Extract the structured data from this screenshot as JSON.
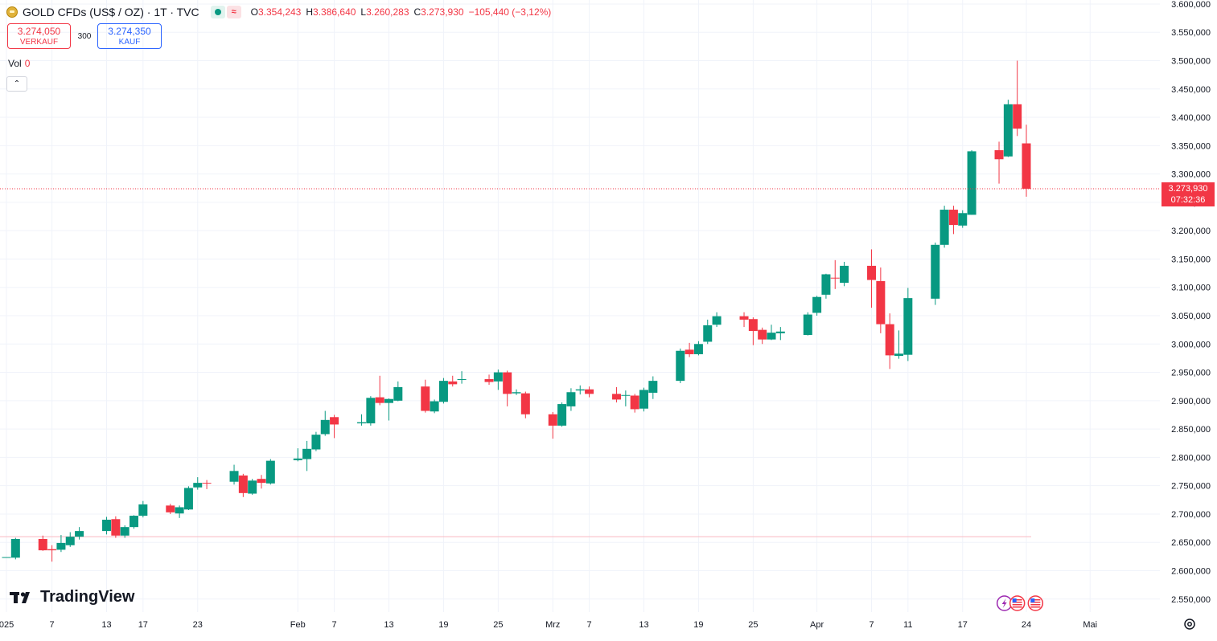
{
  "header": {
    "title": "GOLD CFDs (US$ / OZ) · 1T · TVC",
    "open_label": "O",
    "open": "3.354,243",
    "high_label": "H",
    "high": "3.386,640",
    "low_label": "L",
    "low": "3.260,283",
    "close_label": "C",
    "close": "3.273,930",
    "change": "−105,440 (−3,12%)",
    "symbol_icon": "gold-bar-icon",
    "status_icons": [
      "market-open-icon",
      "delay-wave-icon"
    ],
    "wave_glyph": "≈"
  },
  "trade": {
    "sell_price": "3.274,050",
    "sell_label": "VERKAUF",
    "spread": "300",
    "buy_price": "3.274,350",
    "buy_label": "KAUF"
  },
  "volume": {
    "label": "Vol",
    "value": "0"
  },
  "collapse_glyph": "⌃",
  "price_tag": {
    "price": "3.273,930",
    "countdown": "07:32:36"
  },
  "brand": "TradingView",
  "colors": {
    "up": "#089981",
    "down": "#f23645",
    "grid": "#f0f3fa",
    "axis_text": "#131722"
  },
  "chart_data": {
    "type": "candlestick",
    "y_ticks": [
      "3.600,000",
      "3.550,000",
      "3.500,000",
      "3.450,000",
      "3.400,000",
      "3.350,000",
      "3.300,000",
      "3.250,000",
      "3.200,000",
      "3.150,000",
      "3.100,000",
      "3.050,000",
      "3.000,000",
      "2.950,000",
      "2.900,000",
      "2.850,000",
      "2.800,000",
      "2.750,000",
      "2.700,000",
      "2.650,000",
      "2.600,000",
      "2.550,000"
    ],
    "y_tick_values": [
      3600,
      3550,
      3500,
      3450,
      3400,
      3350,
      3300,
      3250,
      3200,
      3150,
      3100,
      3050,
      3000,
      2950,
      2900,
      2850,
      2800,
      2750,
      2700,
      2650,
      2600,
      2550
    ],
    "x_ticks": [
      {
        "label": "025",
        "date": "2025-01-02"
      },
      {
        "label": "7",
        "date": "2025-01-07"
      },
      {
        "label": "13",
        "date": "2025-01-13"
      },
      {
        "label": "17",
        "date": "2025-01-17"
      },
      {
        "label": "23",
        "date": "2025-01-23"
      },
      {
        "label": "Feb",
        "date": "2025-02-03"
      },
      {
        "label": "7",
        "date": "2025-02-07"
      },
      {
        "label": "13",
        "date": "2025-02-13"
      },
      {
        "label": "19",
        "date": "2025-02-19"
      },
      {
        "label": "25",
        "date": "2025-02-25"
      },
      {
        "label": "Mrz",
        "date": "2025-03-03"
      },
      {
        "label": "7",
        "date": "2025-03-07"
      },
      {
        "label": "13",
        "date": "2025-03-13"
      },
      {
        "label": "19",
        "date": "2025-03-19"
      },
      {
        "label": "25",
        "date": "2025-03-25"
      },
      {
        "label": "Apr",
        "date": "2025-04-01"
      },
      {
        "label": "7",
        "date": "2025-04-07"
      },
      {
        "label": "11",
        "date": "2025-04-11"
      },
      {
        "label": "17",
        "date": "2025-04-17"
      },
      {
        "label": "24",
        "date": "2025-04-24"
      },
      {
        "label": "Mai",
        "date": "2025-05-01"
      }
    ],
    "ylim": [
      2527,
      3607
    ],
    "last_price": 3273.93,
    "reference_level": 2660,
    "event_markers": [
      {
        "date": "2025-04-23",
        "icons": [
          "lightning-icon",
          "us-flag-icon"
        ]
      },
      {
        "date": "2025-04-25",
        "icons": [
          "us-flag-icon"
        ]
      }
    ],
    "candles": [
      {
        "date": "2025-01-02",
        "o": 2624,
        "h": 2624,
        "l": 2624,
        "c": 2624
      },
      {
        "date": "2025-01-03",
        "o": 2623,
        "h": 2658,
        "l": 2620,
        "c": 2656
      },
      {
        "date": "2025-01-06",
        "o": 2656,
        "h": 2662,
        "l": 2635,
        "c": 2636
      },
      {
        "date": "2025-01-07",
        "o": 2638,
        "h": 2645,
        "l": 2616,
        "c": 2636
      },
      {
        "date": "2025-01-08",
        "o": 2637,
        "h": 2663,
        "l": 2633,
        "c": 2649
      },
      {
        "date": "2025-01-09",
        "o": 2645,
        "h": 2668,
        "l": 2642,
        "c": 2660
      },
      {
        "date": "2025-01-10",
        "o": 2660,
        "h": 2677,
        "l": 2655,
        "c": 2670
      },
      {
        "date": "2025-01-13",
        "o": 2670,
        "h": 2695,
        "l": 2664,
        "c": 2690
      },
      {
        "date": "2025-01-14",
        "o": 2691,
        "h": 2696,
        "l": 2658,
        "c": 2662
      },
      {
        "date": "2025-01-15",
        "o": 2662,
        "h": 2680,
        "l": 2658,
        "c": 2677
      },
      {
        "date": "2025-01-16",
        "o": 2677,
        "h": 2698,
        "l": 2674,
        "c": 2697
      },
      {
        "date": "2025-01-17",
        "o": 2697,
        "h": 2723,
        "l": 2694,
        "c": 2717
      },
      {
        "date": "2025-01-20",
        "o": 2715,
        "h": 2718,
        "l": 2700,
        "c": 2703
      },
      {
        "date": "2025-01-21",
        "o": 2701,
        "h": 2715,
        "l": 2693,
        "c": 2712
      },
      {
        "date": "2025-01-22",
        "o": 2708,
        "h": 2749,
        "l": 2707,
        "c": 2746
      },
      {
        "date": "2025-01-23",
        "o": 2747,
        "h": 2765,
        "l": 2743,
        "c": 2755
      },
      {
        "date": "2025-01-24",
        "o": 2755,
        "h": 2760,
        "l": 2744,
        "c": 2754
      },
      {
        "date": "2025-01-27",
        "o": 2757,
        "h": 2787,
        "l": 2752,
        "c": 2776
      },
      {
        "date": "2025-01-28",
        "o": 2768,
        "h": 2771,
        "l": 2730,
        "c": 2737
      },
      {
        "date": "2025-01-29",
        "o": 2736,
        "h": 2762,
        "l": 2734,
        "c": 2759
      },
      {
        "date": "2025-01-30",
        "o": 2762,
        "h": 2769,
        "l": 2745,
        "c": 2755
      },
      {
        "date": "2025-01-31",
        "o": 2754,
        "h": 2797,
        "l": 2752,
        "c": 2794
      },
      {
        "date": "2025-02-03",
        "o": 2795,
        "h": 2816,
        "l": 2793,
        "c": 2798
      },
      {
        "date": "2025-02-04",
        "o": 2797,
        "h": 2829,
        "l": 2776,
        "c": 2815
      },
      {
        "date": "2025-02-05",
        "o": 2814,
        "h": 2845,
        "l": 2811,
        "c": 2840
      },
      {
        "date": "2025-02-06",
        "o": 2841,
        "h": 2882,
        "l": 2838,
        "c": 2866
      },
      {
        "date": "2025-02-07",
        "o": 2871,
        "h": 2875,
        "l": 2834,
        "c": 2858
      },
      {
        "date": "2025-02-10",
        "o": 2860,
        "h": 2876,
        "l": 2856,
        "c": 2862
      },
      {
        "date": "2025-02-11",
        "o": 2860,
        "h": 2908,
        "l": 2856,
        "c": 2905
      },
      {
        "date": "2025-02-12",
        "o": 2906,
        "h": 2944,
        "l": 2892,
        "c": 2896
      },
      {
        "date": "2025-02-13",
        "o": 2896,
        "h": 2904,
        "l": 2865,
        "c": 2903
      },
      {
        "date": "2025-02-14",
        "o": 2900,
        "h": 2934,
        "l": 2899,
        "c": 2924
      },
      {
        "date": "2025-02-17",
        "o": 2925,
        "h": 2937,
        "l": 2879,
        "c": 2882
      },
      {
        "date": "2025-02-18",
        "o": 2881,
        "h": 2902,
        "l": 2878,
        "c": 2899
      },
      {
        "date": "2025-02-19",
        "o": 2898,
        "h": 2940,
        "l": 2895,
        "c": 2935
      },
      {
        "date": "2025-02-20",
        "o": 2934,
        "h": 2944,
        "l": 2925,
        "c": 2929
      },
      {
        "date": "2025-02-21",
        "o": 2937,
        "h": 2952,
        "l": 2930,
        "c": 2938
      },
      {
        "date": "2025-02-24",
        "o": 2938,
        "h": 2946,
        "l": 2928,
        "c": 2933
      },
      {
        "date": "2025-02-25",
        "o": 2934,
        "h": 2955,
        "l": 2919,
        "c": 2950
      },
      {
        "date": "2025-02-26",
        "o": 2950,
        "h": 2953,
        "l": 2890,
        "c": 2912
      },
      {
        "date": "2025-02-27",
        "o": 2913,
        "h": 2920,
        "l": 2910,
        "c": 2915
      },
      {
        "date": "2025-02-28",
        "o": 2913,
        "h": 2916,
        "l": 2869,
        "c": 2876
      },
      {
        "date": "2025-03-03",
        "o": 2876,
        "h": 2880,
        "l": 2833,
        "c": 2856
      },
      {
        "date": "2025-03-04",
        "o": 2856,
        "h": 2897,
        "l": 2854,
        "c": 2894
      },
      {
        "date": "2025-03-05",
        "o": 2890,
        "h": 2922,
        "l": 2882,
        "c": 2915
      },
      {
        "date": "2025-03-06",
        "o": 2918,
        "h": 2927,
        "l": 2911,
        "c": 2920
      },
      {
        "date": "2025-03-07",
        "o": 2920,
        "h": 2925,
        "l": 2906,
        "c": 2912
      },
      {
        "date": "2025-03-10",
        "o": 2912,
        "h": 2924,
        "l": 2897,
        "c": 2902
      },
      {
        "date": "2025-03-11",
        "o": 2909,
        "h": 2918,
        "l": 2890,
        "c": 2910
      },
      {
        "date": "2025-03-12",
        "o": 2909,
        "h": 2912,
        "l": 2879,
        "c": 2885
      },
      {
        "date": "2025-03-13",
        "o": 2886,
        "h": 2923,
        "l": 2881,
        "c": 2919
      },
      {
        "date": "2025-03-14",
        "o": 2914,
        "h": 2943,
        "l": 2903,
        "c": 2935
      },
      {
        "date": "2025-03-17",
        "o": 2935,
        "h": 2992,
        "l": 2931,
        "c": 2988
      },
      {
        "date": "2025-03-18",
        "o": 2990,
        "h": 3002,
        "l": 2977,
        "c": 2982
      },
      {
        "date": "2025-03-19",
        "o": 2982,
        "h": 3005,
        "l": 2980,
        "c": 3000
      },
      {
        "date": "2025-03-20",
        "o": 3004,
        "h": 3043,
        "l": 3000,
        "c": 3033
      },
      {
        "date": "2025-03-21",
        "o": 3034,
        "h": 3056,
        "l": 3030,
        "c": 3049
      },
      {
        "date": "2025-03-24",
        "o": 3049,
        "h": 3056,
        "l": 3030,
        "c": 3043
      },
      {
        "date": "2025-03-25",
        "o": 3044,
        "h": 3047,
        "l": 2998,
        "c": 3023
      },
      {
        "date": "2025-03-26",
        "o": 3025,
        "h": 3029,
        "l": 3000,
        "c": 3008
      },
      {
        "date": "2025-03-27",
        "o": 3008,
        "h": 3034,
        "l": 3007,
        "c": 3020
      },
      {
        "date": "2025-03-28",
        "o": 3019,
        "h": 3030,
        "l": 3007,
        "c": 3022
      },
      {
        "date": "2025-03-31",
        "o": 3016,
        "h": 3056,
        "l": 3015,
        "c": 3052
      },
      {
        "date": "2025-04-01",
        "o": 3055,
        "h": 3085,
        "l": 3050,
        "c": 3083
      },
      {
        "date": "2025-04-02",
        "o": 3087,
        "h": 3124,
        "l": 3080,
        "c": 3123
      },
      {
        "date": "2025-04-03",
        "o": 3117,
        "h": 3148,
        "l": 3097,
        "c": 3116
      },
      {
        "date": "2025-04-04",
        "o": 3108,
        "h": 3145,
        "l": 3102,
        "c": 3138
      },
      {
        "date": "2025-04-07",
        "o": 3138,
        "h": 3167,
        "l": 3064,
        "c": 3113
      },
      {
        "date": "2025-04-08",
        "o": 3111,
        "h": 3135,
        "l": 3019,
        "c": 3035
      },
      {
        "date": "2025-04-09",
        "o": 3035,
        "h": 3054,
        "l": 2956,
        "c": 2980
      },
      {
        "date": "2025-04-10",
        "o": 2979,
        "h": 3024,
        "l": 2974,
        "c": 2983
      },
      {
        "date": "2025-04-11",
        "o": 2981,
        "h": 3099,
        "l": 2970,
        "c": 3081
      },
      {
        "date": "2025-04-14",
        "o": 3080,
        "h": 3179,
        "l": 3069,
        "c": 3175
      },
      {
        "date": "2025-04-15",
        "o": 3175,
        "h": 3244,
        "l": 3170,
        "c": 3237
      },
      {
        "date": "2025-04-16",
        "o": 3237,
        "h": 3244,
        "l": 3194,
        "c": 3210
      },
      {
        "date": "2025-04-17",
        "o": 3209,
        "h": 3236,
        "l": 3205,
        "c": 3231
      },
      {
        "date": "2025-04-18",
        "o": 3228,
        "h": 3342,
        "l": 3228,
        "c": 3340
      },
      {
        "date": "2025-04-21",
        "o": 3342,
        "h": 3357,
        "l": 3283,
        "c": 3326
      },
      {
        "date": "2025-04-22",
        "o": 3331,
        "h": 3431,
        "l": 3330,
        "c": 3423
      },
      {
        "date": "2025-04-23",
        "o": 3423,
        "h": 3500,
        "l": 3367,
        "c": 3380
      },
      {
        "date": "2025-04-24",
        "o": 3354,
        "h": 3387,
        "l": 3260,
        "c": 3274
      }
    ]
  }
}
